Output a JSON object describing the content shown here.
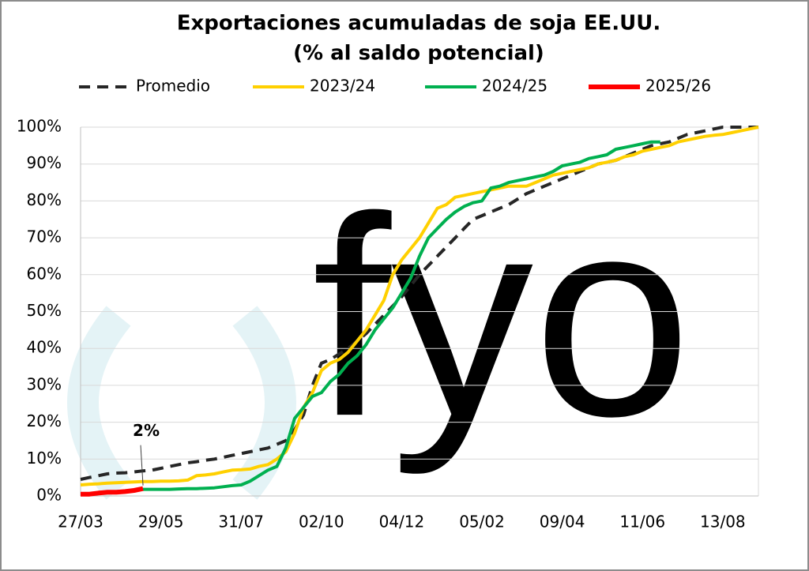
{
  "chart_data": {
    "type": "line",
    "title": "Exportaciones acumuladas de soja EE.UU.",
    "subtitle": "(% al saldo potencial)",
    "watermark": "fyo",
    "categories": [
      "27/03",
      null,
      null,
      null,
      null,
      null,
      null,
      null,
      null,
      "29/05",
      null,
      null,
      null,
      null,
      null,
      null,
      null,
      null,
      "31/07",
      null,
      null,
      null,
      null,
      null,
      null,
      null,
      null,
      "02/10",
      null,
      null,
      null,
      null,
      null,
      null,
      null,
      null,
      "04/12",
      null,
      null,
      null,
      null,
      null,
      null,
      null,
      null,
      "05/02",
      null,
      null,
      null,
      null,
      null,
      null,
      null,
      null,
      "09/04",
      null,
      null,
      null,
      null,
      null,
      null,
      null,
      null,
      "11/06",
      null,
      null,
      null,
      null,
      null,
      null,
      null,
      null,
      "13/08",
      null,
      null,
      null,
      null
    ],
    "series": [
      {
        "name": "Promedio",
        "color": "#262626",
        "dash": true,
        "values": [
          4.5,
          5,
          5.5,
          6,
          6.2,
          6.3,
          6.5,
          6.8,
          7,
          7.5,
          8,
          8.5,
          9,
          9.3,
          9.7,
          10,
          10.5,
          11,
          11.5,
          12,
          12.5,
          13,
          14,
          15,
          18,
          22,
          30,
          36,
          37,
          38.5,
          40,
          42,
          44,
          46.5,
          49,
          51.5,
          54,
          57,
          60,
          62.5,
          65,
          67.5,
          70,
          72.5,
          75,
          76,
          77,
          78,
          79,
          80.5,
          82,
          83,
          84,
          85,
          86,
          87,
          88,
          89,
          90,
          90.5,
          91,
          92,
          93,
          94,
          95,
          95.5,
          96,
          97,
          98,
          98.5,
          99,
          99.5,
          100,
          100,
          100,
          100,
          100
        ]
      },
      {
        "name": "2023/24",
        "color": "#ffd000",
        "dash": false,
        "values": [
          3,
          3.2,
          3.3,
          3.5,
          3.6,
          3.7,
          3.8,
          3.9,
          3.9,
          4,
          4,
          4.1,
          4.3,
          5.5,
          5.7,
          6,
          6.5,
          7,
          7.1,
          7.3,
          8,
          8.5,
          10,
          12,
          17,
          24,
          28,
          34,
          36,
          37,
          39,
          42,
          45,
          49,
          53,
          60,
          64,
          67,
          70,
          74,
          78,
          79,
          81,
          81.5,
          82,
          82.5,
          83,
          83.5,
          84,
          84,
          84,
          85,
          86,
          87,
          87.5,
          88,
          88.5,
          89,
          90,
          90.5,
          91,
          92,
          92.5,
          93.5,
          94,
          94.5,
          95,
          96,
          96.5,
          97,
          97.5,
          97.8,
          98,
          98.5,
          99,
          99.5,
          100
        ]
      },
      {
        "name": "2024/25",
        "color": "#00b050",
        "dash": false,
        "values": [
          null,
          null,
          null,
          null,
          null,
          null,
          null,
          1.8,
          1.8,
          1.8,
          1.8,
          1.9,
          2,
          2,
          2.1,
          2.2,
          2.5,
          2.8,
          3,
          4,
          5.5,
          7,
          8,
          13,
          21,
          24,
          27,
          28,
          31,
          33,
          36,
          38,
          41,
          45,
          48,
          51,
          55,
          59,
          65,
          70,
          72.5,
          75,
          77,
          78.5,
          79.5,
          80,
          83.5,
          84,
          85,
          85.5,
          86,
          86.5,
          87,
          88,
          89.5,
          90,
          90.5,
          91.5,
          92,
          92.5,
          94,
          94.5,
          95,
          95.5,
          96,
          96,
          null,
          null,
          null,
          null,
          null,
          null,
          null,
          null,
          null,
          null,
          null
        ]
      },
      {
        "name": "2025/26",
        "color": "#ff0000",
        "dash": false,
        "values": [
          0.5,
          0.5,
          0.8,
          1,
          1,
          1.2,
          1.5,
          2,
          null,
          null,
          null,
          null,
          null,
          null,
          null,
          null,
          null,
          null,
          null,
          null,
          null,
          null,
          null,
          null,
          null,
          null,
          null,
          null,
          null,
          null,
          null,
          null,
          null,
          null,
          null,
          null,
          null,
          null,
          null,
          null,
          null,
          null,
          null,
          null,
          null,
          null,
          null,
          null,
          null,
          null,
          null,
          null,
          null,
          null,
          null,
          null,
          null,
          null,
          null,
          null,
          null,
          null,
          null,
          null,
          null,
          null,
          null,
          null,
          null,
          null,
          null,
          null,
          null,
          null,
          null,
          null,
          null
        ]
      }
    ],
    "annotations": [
      {
        "text": "2%",
        "series": 3,
        "index": 7
      }
    ],
    "ylim": [
      0,
      100
    ],
    "yticks": [
      {
        "value": 0,
        "label": "0%"
      },
      {
        "value": 10,
        "label": "10%"
      },
      {
        "value": 20,
        "label": "20%"
      },
      {
        "value": 30,
        "label": "30%"
      },
      {
        "value": 40,
        "label": "40%"
      },
      {
        "value": 50,
        "label": "50%"
      },
      {
        "value": 60,
        "label": "60%"
      },
      {
        "value": 70,
        "label": "70%"
      },
      {
        "value": 80,
        "label": "80%"
      },
      {
        "value": 90,
        "label": "90%"
      },
      {
        "value": 100,
        "label": "100%"
      }
    ],
    "grid": true,
    "legend": "top"
  }
}
